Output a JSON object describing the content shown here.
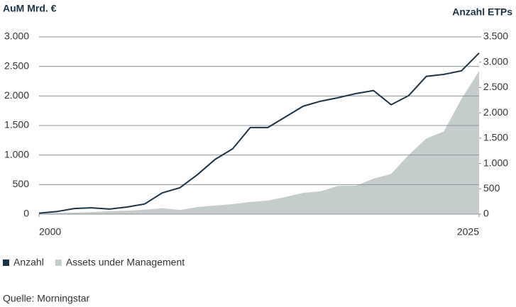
{
  "chart_data": {
    "type": "line",
    "y_label": "AuM Mrd. €",
    "y2_label": "Anzahl ETPs",
    "source": "Quelle: Morningstar",
    "x": [
      2000,
      2001,
      2002,
      2003,
      2004,
      2005,
      2006,
      2007,
      2008,
      2009,
      2010,
      2011,
      2012,
      2013,
      2014,
      2015,
      2016,
      2017,
      2018,
      2019,
      2020,
      2021,
      2022,
      2023,
      2024,
      2025
    ],
    "xlim": [
      2000,
      2025
    ],
    "xticks": [
      2000,
      2025
    ],
    "ylim": [
      0,
      3000
    ],
    "yticks": [
      {
        "value": 0,
        "label": "0"
      },
      {
        "value": 500,
        "label": "500"
      },
      {
        "value": 1000,
        "label": "1.000"
      },
      {
        "value": 1500,
        "label": "1.500"
      },
      {
        "value": 2000,
        "label": "2.000"
      },
      {
        "value": 2500,
        "label": "2.500"
      },
      {
        "value": 3000,
        "label": "3.000"
      }
    ],
    "y2lim": [
      0,
      3500
    ],
    "y2ticks": [
      {
        "value": 0,
        "label": "0"
      },
      {
        "value": 500,
        "label": "500"
      },
      {
        "value": 1000,
        "label": "1.000"
      },
      {
        "value": 1500,
        "label": "1.500"
      },
      {
        "value": 2000,
        "label": "2.000"
      },
      {
        "value": 2500,
        "label": "2.500"
      },
      {
        "value": 3000,
        "label": "3.000"
      },
      {
        "value": 3500,
        "label": "3.500"
      }
    ],
    "grid": true,
    "series": [
      {
        "name": "Anzahl",
        "color": "#1c3447",
        "style": "line",
        "axis": "y2",
        "values": [
          20,
          50,
          110,
          125,
          100,
          140,
          200,
          420,
          520,
          780,
          1080,
          1290,
          1710,
          1710,
          1920,
          2130,
          2230,
          2300,
          2380,
          2440,
          2160,
          2340,
          2720,
          2760,
          2830,
          3180
        ]
      },
      {
        "name": "Assets under Management",
        "color": "#c4cccc",
        "style": "area",
        "axis": "y",
        "values": [
          5,
          20,
          25,
          35,
          50,
          60,
          75,
          100,
          70,
          120,
          145,
          170,
          205,
          230,
          290,
          360,
          385,
          480,
          480,
          600,
          680,
          1000,
          1280,
          1400,
          1950,
          2420
        ]
      }
    ]
  }
}
